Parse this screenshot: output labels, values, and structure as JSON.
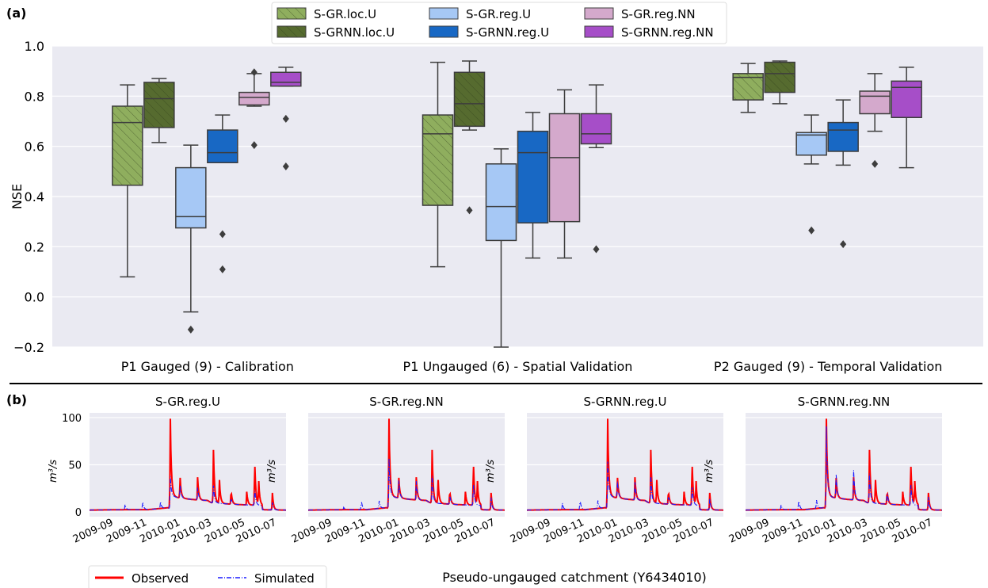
{
  "panel_labels": {
    "a": "(a)",
    "b": "(b)"
  },
  "legend_a": [
    {
      "label": "S-GR.loc.U",
      "color": "#8fae5e",
      "hatch": true
    },
    {
      "label": "S-GRNN.loc.U",
      "color": "#566b2f",
      "hatch": true
    },
    {
      "label": "S-GR.reg.U",
      "color": "#a6c8f5",
      "hatch": false
    },
    {
      "label": "S-GRNN.reg.U",
      "color": "#1868c4",
      "hatch": false
    },
    {
      "label": "S-GR.reg.NN",
      "color": "#d4a9cc",
      "hatch": false
    },
    {
      "label": "S-GRNN.reg.NN",
      "color": "#a64ec8",
      "hatch": false
    }
  ],
  "legend_b": {
    "observed": "Observed",
    "simulated": "Simulated",
    "observed_color": "#ff0000",
    "simulated_color": "#1a1aff"
  },
  "chart_data": [
    {
      "type": "box",
      "ylabel": "NSE",
      "ylim": [
        -0.2,
        1.0
      ],
      "yticks": [
        "−0.2",
        "0.0",
        "0.2",
        "0.4",
        "0.6",
        "0.8",
        "1.0"
      ],
      "grid": true,
      "legend_position": "top-center",
      "categories": [
        "P1 Gauged (9) - Calibration",
        "P1 Ungauged (6) - Spatial Validation",
        "P2 Gauged (9) - Temporal Validation"
      ],
      "series": [
        {
          "name": "S-GR.loc.U",
          "boxes": [
            {
              "low": 0.08,
              "q1": 0.445,
              "median": 0.695,
              "q3": 0.76,
              "high": 0.845,
              "outliers": []
            },
            {
              "low": 0.12,
              "q1": 0.365,
              "median": 0.65,
              "q3": 0.725,
              "high": 0.935,
              "outliers": []
            },
            {
              "low": 0.735,
              "q1": 0.785,
              "median": 0.875,
              "q3": 0.89,
              "high": 0.93,
              "outliers": []
            }
          ]
        },
        {
          "name": "S-GRNN.loc.U",
          "boxes": [
            {
              "low": 0.615,
              "q1": 0.675,
              "median": 0.79,
              "q3": 0.855,
              "high": 0.87,
              "outliers": []
            },
            {
              "low": 0.665,
              "q1": 0.68,
              "median": 0.77,
              "q3": 0.895,
              "high": 0.94,
              "outliers": [
                0.345
              ]
            },
            {
              "low": 0.77,
              "q1": 0.815,
              "median": 0.89,
              "q3": 0.935,
              "high": 0.94,
              "outliers": []
            }
          ]
        },
        {
          "name": "S-GR.reg.U",
          "boxes": [
            {
              "low": -0.06,
              "q1": 0.275,
              "median": 0.32,
              "q3": 0.515,
              "high": 0.605,
              "outliers": [
                -0.13
              ]
            },
            {
              "low": -0.2,
              "q1": 0.225,
              "median": 0.36,
              "q3": 0.53,
              "high": 0.59,
              "outliers": []
            },
            {
              "low": 0.53,
              "q1": 0.565,
              "median": 0.645,
              "q3": 0.655,
              "high": 0.725,
              "outliers": [
                0.265
              ]
            }
          ]
        },
        {
          "name": "S-GRNN.reg.U",
          "boxes": [
            {
              "low": 0.535,
              "q1": 0.535,
              "median": 0.575,
              "q3": 0.665,
              "high": 0.725,
              "outliers": [
                0.25,
                0.11
              ]
            },
            {
              "low": 0.155,
              "q1": 0.295,
              "median": 0.575,
              "q3": 0.66,
              "high": 0.735,
              "outliers": []
            },
            {
              "low": 0.525,
              "q1": 0.58,
              "median": 0.665,
              "q3": 0.695,
              "high": 0.785,
              "outliers": [
                0.21
              ]
            }
          ]
        },
        {
          "name": "S-GR.reg.NN",
          "boxes": [
            {
              "low": 0.76,
              "q1": 0.765,
              "median": 0.795,
              "q3": 0.815,
              "high": 0.89,
              "outliers": [
                0.895,
                0.605
              ]
            },
            {
              "low": 0.155,
              "q1": 0.3,
              "median": 0.555,
              "q3": 0.73,
              "high": 0.825,
              "outliers": []
            },
            {
              "low": 0.66,
              "q1": 0.73,
              "median": 0.8,
              "q3": 0.82,
              "high": 0.89,
              "outliers": [
                0.53
              ]
            }
          ]
        },
        {
          "name": "S-GRNN.reg.NN",
          "boxes": [
            {
              "low": 0.84,
              "q1": 0.84,
              "median": 0.855,
              "q3": 0.895,
              "high": 0.915,
              "outliers": [
                0.71,
                0.52
              ]
            },
            {
              "low": 0.595,
              "q1": 0.61,
              "median": 0.65,
              "q3": 0.73,
              "high": 0.845,
              "outliers": [
                0.19
              ]
            },
            {
              "low": 0.515,
              "q1": 0.715,
              "median": 0.835,
              "q3": 0.86,
              "high": 0.915,
              "outliers": []
            }
          ]
        }
      ]
    },
    {
      "type": "line",
      "xlabel": "Pseudo-ungauged catchment (Y6434010)",
      "ylabel": "m³/s",
      "ylim": [
        -5,
        105
      ],
      "yticks": [
        "0",
        "50",
        "100"
      ],
      "xticks": [
        "2009-09",
        "2009-11",
        "2010-01",
        "2010-03",
        "2010-05",
        "2010-07"
      ],
      "x_range": [
        "2009-08",
        "2010-08"
      ],
      "legend_position": "bottom-left",
      "observed": {
        "base": [
          [
            0,
            2
          ],
          [
            0.2,
            2.5
          ],
          [
            0.3,
            2.5
          ],
          [
            0.4,
            4.5
          ],
          [
            0.41,
            3
          ],
          [
            0.6,
            5
          ],
          [
            0.62,
            3
          ],
          [
            1.0,
            2
          ]
        ],
        "peaks": [
          [
            0.41,
            100
          ],
          [
            0.46,
            26
          ],
          [
            0.55,
            24
          ],
          [
            0.63,
            62
          ],
          [
            0.66,
            30
          ],
          [
            0.72,
            16
          ],
          [
            0.8,
            14
          ],
          [
            0.84,
            55
          ],
          [
            0.86,
            30
          ],
          [
            0.93,
            20
          ]
        ]
      },
      "subplots": [
        {
          "title": "S-GR.reg.U",
          "simulated_peaks": [
            [
              0.18,
              8
            ],
            [
              0.27,
              14
            ],
            [
              0.36,
              12
            ],
            [
              0.41,
              35
            ],
            [
              0.46,
              22
            ],
            [
              0.55,
              18
            ],
            [
              0.63,
              28
            ],
            [
              0.72,
              10
            ],
            [
              0.84,
              28
            ],
            [
              0.93,
              12
            ]
          ],
          "sim_scale": 0.8
        },
        {
          "title": "S-GR.reg.NN",
          "simulated_peaks": [
            [
              0.18,
              3
            ],
            [
              0.27,
              12
            ],
            [
              0.36,
              11
            ],
            [
              0.41,
              54
            ],
            [
              0.46,
              25
            ],
            [
              0.55,
              22
            ],
            [
              0.63,
              35
            ],
            [
              0.72,
              12
            ],
            [
              0.84,
              32
            ],
            [
              0.93,
              16
            ]
          ],
          "sim_scale": 1.0
        },
        {
          "title": "S-GRNN.reg.U",
          "simulated_peaks": [
            [
              0.18,
              9
            ],
            [
              0.27,
              14
            ],
            [
              0.36,
              12
            ],
            [
              0.41,
              52
            ],
            [
              0.46,
              25
            ],
            [
              0.55,
              22
            ],
            [
              0.63,
              38
            ],
            [
              0.72,
              12
            ],
            [
              0.84,
              30
            ],
            [
              0.93,
              15
            ]
          ],
          "sim_scale": 0.95
        },
        {
          "title": "S-GRNN.reg.NN",
          "simulated_peaks": [
            [
              0.18,
              6
            ],
            [
              0.27,
              14
            ],
            [
              0.36,
              12
            ],
            [
              0.41,
              100
            ],
            [
              0.46,
              33
            ],
            [
              0.55,
              35
            ],
            [
              0.63,
              38
            ],
            [
              0.72,
              17
            ],
            [
              0.84,
              32
            ],
            [
              0.93,
              17
            ]
          ],
          "sim_scale": 1.0
        }
      ]
    }
  ]
}
